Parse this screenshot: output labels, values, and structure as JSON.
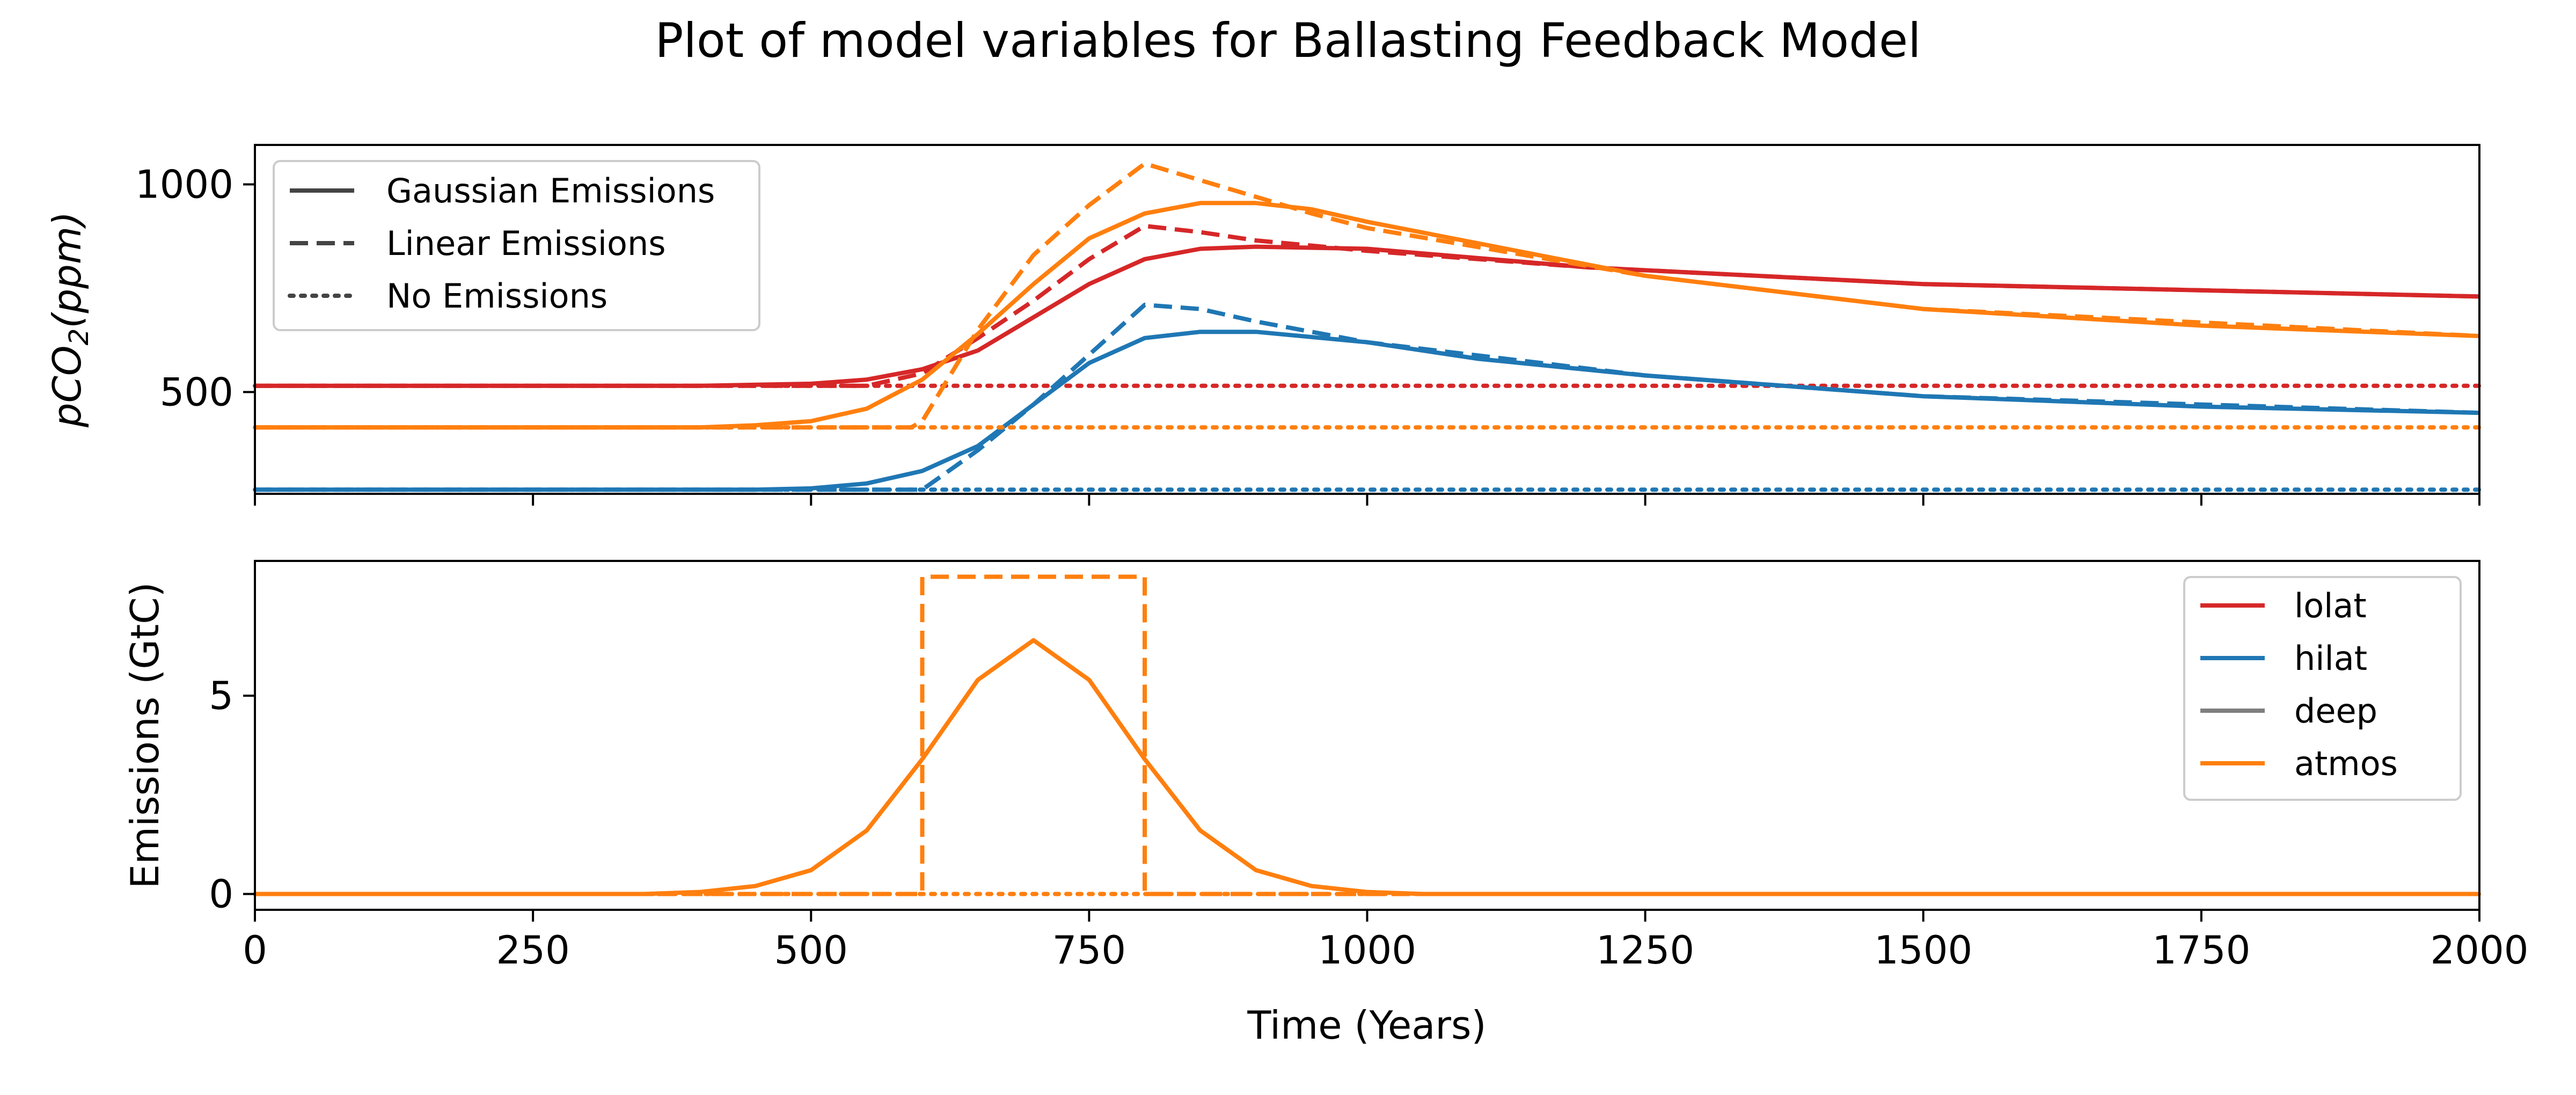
{
  "title": "Plot of model variables for Ballasting Feedback Model",
  "colors": {
    "lolat": "#d62728",
    "hilat": "#1f77b4",
    "deep": "#7f7f7f",
    "atmos": "#ff7f0e",
    "linestyle_legend": "#444444"
  },
  "chart_data": [
    {
      "type": "line",
      "ylabel": "pCO2(ppm)",
      "xlim": [
        0,
        2000
      ],
      "ylim": [
        255,
        1095
      ],
      "yticks": [
        500,
        1000
      ],
      "xticks": [
        0,
        250,
        500,
        750,
        1000,
        1250,
        1500,
        1750,
        2000
      ],
      "show_xticklabels": false,
      "legend": {
        "position": "upper-left",
        "entries": [
          {
            "label": "Gaussian Emissions",
            "dash": "solid"
          },
          {
            "label": "Linear Emissions",
            "dash": "dashed"
          },
          {
            "label": "No Emissions",
            "dash": "dotted"
          }
        ]
      },
      "series": [
        {
          "color": "lolat",
          "dash": "solid",
          "x": [
            0,
            400,
            500,
            550,
            600,
            650,
            700,
            750,
            800,
            850,
            900,
            1000,
            1200,
            1500,
            2000
          ],
          "y": [
            515,
            515,
            520,
            530,
            555,
            600,
            680,
            760,
            820,
            845,
            850,
            845,
            800,
            760,
            730
          ]
        },
        {
          "color": "lolat",
          "dash": "dashed",
          "x": [
            0,
            550,
            600,
            650,
            700,
            750,
            800,
            850,
            900,
            1000,
            1200,
            1500,
            2000
          ],
          "y": [
            515,
            515,
            545,
            630,
            720,
            820,
            900,
            885,
            865,
            840,
            800,
            760,
            730
          ]
        },
        {
          "color": "lolat",
          "dash": "dotted",
          "x": [
            0,
            2000
          ],
          "y": [
            515,
            515
          ]
        },
        {
          "color": "hilat",
          "dash": "solid",
          "x": [
            0,
            450,
            500,
            550,
            600,
            650,
            700,
            750,
            800,
            850,
            900,
            1000,
            1100,
            1250,
            1500,
            1750,
            2000
          ],
          "y": [
            265,
            265,
            268,
            280,
            310,
            370,
            470,
            570,
            630,
            645,
            645,
            620,
            580,
            540,
            490,
            465,
            450
          ]
        },
        {
          "color": "hilat",
          "dash": "dashed",
          "x": [
            0,
            600,
            650,
            700,
            750,
            800,
            850,
            900,
            950,
            1000,
            1250,
            1500,
            2000
          ],
          "y": [
            265,
            265,
            360,
            470,
            590,
            710,
            700,
            670,
            645,
            620,
            540,
            490,
            450
          ]
        },
        {
          "color": "hilat",
          "dash": "dotted",
          "x": [
            0,
            2000
          ],
          "y": [
            265,
            265
          ]
        },
        {
          "color": "atmos",
          "dash": "solid",
          "x": [
            0,
            400,
            450,
            500,
            550,
            600,
            650,
            700,
            750,
            800,
            850,
            900,
            950,
            1000,
            1250,
            1500,
            1750,
            2000
          ],
          "y": [
            415,
            415,
            420,
            430,
            460,
            530,
            640,
            760,
            870,
            930,
            955,
            955,
            940,
            910,
            780,
            700,
            660,
            635
          ]
        },
        {
          "color": "atmos",
          "dash": "dashed",
          "x": [
            0,
            590,
            600,
            650,
            700,
            750,
            800,
            850,
            900,
            950,
            1000,
            1250,
            1500,
            2000
          ],
          "y": [
            415,
            415,
            430,
            650,
            830,
            950,
            1050,
            1010,
            970,
            930,
            895,
            780,
            700,
            635
          ]
        },
        {
          "color": "atmos",
          "dash": "dotted",
          "x": [
            0,
            2000
          ],
          "y": [
            415,
            415
          ]
        }
      ]
    },
    {
      "type": "line",
      "xlabel": "Time (Years)",
      "ylabel": "Emissions (GtC)",
      "xlim": [
        0,
        2000
      ],
      "ylim": [
        -0.4,
        8.4
      ],
      "yticks": [
        0,
        5
      ],
      "xticks": [
        0,
        250,
        500,
        750,
        1000,
        1250,
        1500,
        1750,
        2000
      ],
      "show_xticklabels": true,
      "legend": {
        "position": "upper-right",
        "entries": [
          {
            "label": "lolat",
            "color": "lolat"
          },
          {
            "label": "hilat",
            "color": "hilat"
          },
          {
            "label": "deep",
            "color": "deep"
          },
          {
            "label": "atmos",
            "color": "atmos"
          }
        ]
      },
      "series": [
        {
          "color": "atmos",
          "dash": "solid",
          "x": [
            0,
            350,
            400,
            450,
            500,
            550,
            600,
            650,
            700,
            750,
            800,
            850,
            900,
            950,
            1000,
            1050,
            2000
          ],
          "y": [
            0,
            0,
            0.05,
            0.2,
            0.6,
            1.6,
            3.4,
            5.4,
            6.4,
            5.4,
            3.4,
            1.6,
            0.6,
            0.2,
            0.05,
            0,
            0
          ]
        },
        {
          "color": "atmos",
          "dash": "dashed",
          "x": [
            0,
            600,
            600,
            800,
            800,
            2000
          ],
          "y": [
            0,
            0,
            8,
            8,
            0,
            0
          ]
        },
        {
          "color": "atmos",
          "dash": "dotted",
          "x": [
            0,
            2000
          ],
          "y": [
            0,
            0
          ]
        }
      ]
    }
  ]
}
